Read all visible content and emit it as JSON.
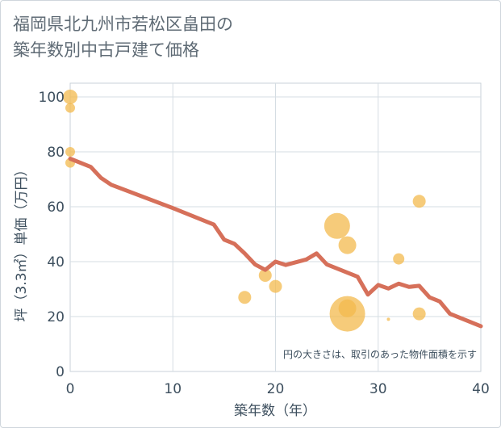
{
  "page": {
    "title_line1": "福岡県北九州市若松区畠田の",
    "title_line2": "築年数別中古戸建て価格"
  },
  "chart_data": {
    "type": "scatter",
    "title": "福岡県北九州市若松区畠田の築年数別中古戸建て価格",
    "xlabel": "築年数（年）",
    "ylabel": "坪（3.3㎡）単価（万円）",
    "xlim": [
      0,
      40
    ],
    "ylim": [
      0,
      105
    ],
    "xticks": [
      0,
      10,
      20,
      30,
      40
    ],
    "yticks": [
      0,
      20,
      40,
      60,
      80,
      100
    ],
    "grid": true,
    "note": "円の大きさは、取引のあった物件面積を示す",
    "colors": {
      "bubble": "#f3b94d",
      "line": "#d6705a",
      "grid": "#d5dde3"
    },
    "scatter": [
      {
        "x": 0,
        "y": 100,
        "size": 9
      },
      {
        "x": 0,
        "y": 96,
        "size": 6
      },
      {
        "x": 0,
        "y": 80,
        "size": 6
      },
      {
        "x": 0,
        "y": 76,
        "size": 6
      },
      {
        "x": 17,
        "y": 27,
        "size": 8
      },
      {
        "x": 19,
        "y": 35,
        "size": 8
      },
      {
        "x": 20,
        "y": 31,
        "size": 8
      },
      {
        "x": 26,
        "y": 53,
        "size": 16
      },
      {
        "x": 27,
        "y": 46,
        "size": 11
      },
      {
        "x": 27,
        "y": 23,
        "size": 11
      },
      {
        "x": 27,
        "y": 21,
        "size": 22
      },
      {
        "x": 31,
        "y": 19,
        "size": 2
      },
      {
        "x": 32,
        "y": 41,
        "size": 7
      },
      {
        "x": 34,
        "y": 62,
        "size": 8
      },
      {
        "x": 34,
        "y": 21,
        "size": 8
      }
    ],
    "trend": {
      "x": [
        0,
        2,
        3,
        4,
        10,
        14,
        15,
        16,
        17,
        18,
        19,
        20,
        21,
        23,
        24,
        25,
        28,
        29,
        30,
        31,
        32,
        33,
        34,
        35,
        36,
        37,
        40
      ],
      "y": [
        77.5,
        74.5,
        70.5,
        68,
        59.5,
        53.5,
        48,
        46.5,
        43,
        39,
        37,
        40,
        38.8,
        40.8,
        43,
        39,
        34.5,
        28,
        31.5,
        30.2,
        32,
        30.8,
        31.2,
        27,
        25.5,
        21,
        16.5
      ]
    }
  }
}
